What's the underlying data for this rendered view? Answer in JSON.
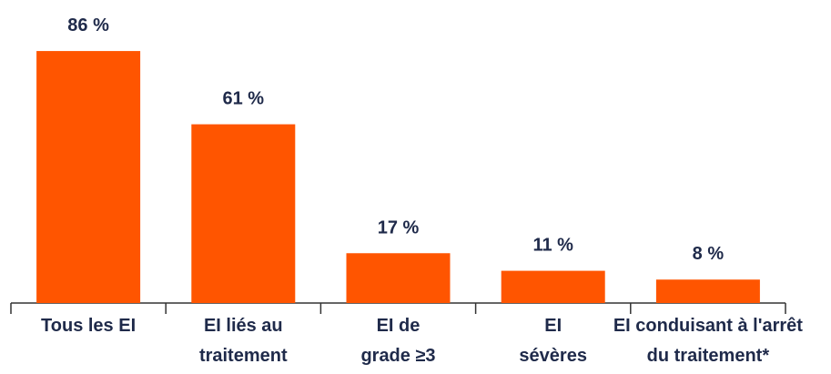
{
  "chart_data": {
    "type": "bar",
    "categories": [
      "Tous les EI",
      "EI liés au\ntraitement",
      "EI de\ngrade ≥3",
      "EI\nsévères",
      "EI conduisant à l'arrêt\ndu traitement*"
    ],
    "values": [
      86,
      61,
      17,
      11,
      8
    ],
    "value_labels": [
      "86 %",
      "61 %",
      "17 %",
      "11 %",
      "8 %"
    ],
    "color": "#ff5500"
  }
}
